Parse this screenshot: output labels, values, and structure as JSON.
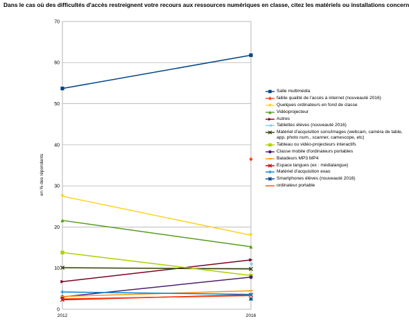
{
  "chart_data": {
    "type": "line",
    "title": "Dans le cas où des difficultés d'accès restreignent votre recours aux ressources numériques en classe, citez les matériels ou installations concernés :",
    "xlabel": "",
    "ylabel": "en % des répondants",
    "x": [
      "2012",
      "2016"
    ],
    "ylim": [
      0,
      70
    ],
    "yticks": [
      0,
      10,
      20,
      30,
      40,
      50,
      60,
      70
    ],
    "grid": true,
    "legend_position": "right",
    "series": [
      {
        "name": "Salle multimédia",
        "color": "#004586",
        "marker": "square",
        "values": [
          53.7,
          61.8
        ]
      },
      {
        "name": "faible qualité de l'accès à internet (nouveauté 2016)",
        "color": "#ff420e",
        "marker": "diamond",
        "values": [
          null,
          36.5
        ]
      },
      {
        "name": "Quelques ordinateurs en fond de classe",
        "color": "#ffd320",
        "marker": "triangle-down",
        "values": [
          27.5,
          18.0
        ]
      },
      {
        "name": "Vidéoprojecteur",
        "color": "#579d1c",
        "marker": "triangle-up",
        "values": [
          21.6,
          15.2
        ]
      },
      {
        "name": "Autres",
        "color": "#7e0021",
        "marker": "triangle-right",
        "values": [
          6.7,
          12.0
        ]
      },
      {
        "name": "Tablettes élèves (nouveauté 2016)",
        "color": "#83caff",
        "marker": "triangle-left",
        "values": [
          null,
          11.0
        ]
      },
      {
        "name": "Matériel d'acquisition sons/images (webcam, caméra de table, app. photo num., scanner, camescope, etc)",
        "color": "#314004",
        "marker": "x",
        "values": [
          10.1,
          9.8
        ]
      },
      {
        "name": "Tableau ou vidéo-projecteurs interactifs",
        "color": "#aecf00",
        "marker": "square",
        "values": [
          13.8,
          8.2
        ]
      },
      {
        "name": "Classe mobile d'ordinateurs portables",
        "color": "#4b1f6f",
        "marker": "circle",
        "values": [
          3.0,
          7.8
        ]
      },
      {
        "name": "Baladeurs MP3 MP4",
        "color": "#ff950e",
        "marker": "bar",
        "values": [
          3.1,
          4.5
        ]
      },
      {
        "name": "Espace langues (ex : médialangue)",
        "color": "#c5000b",
        "marker": "x",
        "values": [
          2.3,
          3.5
        ]
      },
      {
        "name": "Matériel d'acquisition exao",
        "color": "#0084d1",
        "marker": "plus",
        "values": [
          4.2,
          3.6
        ]
      },
      {
        "name": "Smartphones élèves (nouveauté 2016)",
        "color": "#004586",
        "marker": "star",
        "values": [
          null,
          2.5
        ]
      },
      {
        "name": "ordinateur portable",
        "color": "#ff420e",
        "marker": "none",
        "values": [
          2.5,
          3.3
        ]
      }
    ]
  }
}
